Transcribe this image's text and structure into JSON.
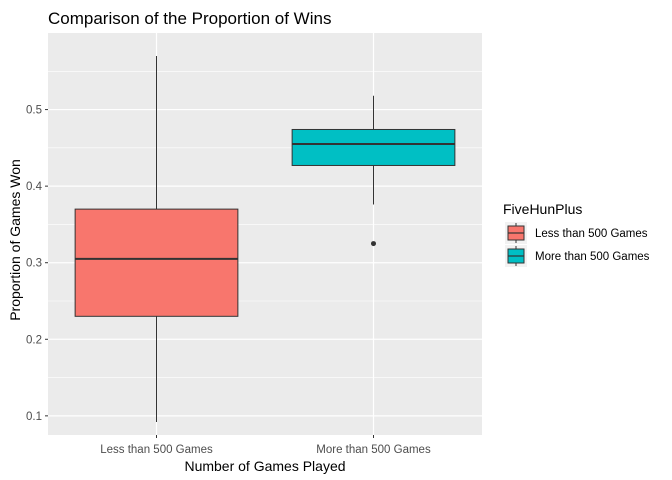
{
  "chart_data": {
    "type": "boxplot",
    "title": "Comparison of the Proportion of Wins",
    "xlabel": "Number of Games Played",
    "ylabel": "Proportion of Games Won",
    "ylim": [
      0.075,
      0.6
    ],
    "yticks": [
      0.1,
      0.2,
      0.3,
      0.4,
      0.5
    ],
    "ytick_labels": [
      "0.1",
      "0.2",
      "0.3",
      "0.4",
      "0.5"
    ],
    "grid": true,
    "legend": {
      "title": "FiveHunPlus",
      "position": "right"
    },
    "categories": [
      "Less than 500 Games",
      "More than 500 Games"
    ],
    "boxes": [
      {
        "name": "Less than 500 Games",
        "color": "#F8766D",
        "min": 0.092,
        "q1": 0.23,
        "median": 0.305,
        "q3": 0.37,
        "max": 0.57,
        "outliers": []
      },
      {
        "name": "More than 500 Games",
        "color": "#00BFC4",
        "min": 0.376,
        "q1": 0.427,
        "median": 0.455,
        "q3": 0.474,
        "max": 0.518,
        "outliers": [
          0.325
        ]
      }
    ]
  },
  "colors": {
    "panel": "#EBEBEB",
    "grid_major": "#FFFFFF",
    "outline": "#333333"
  }
}
